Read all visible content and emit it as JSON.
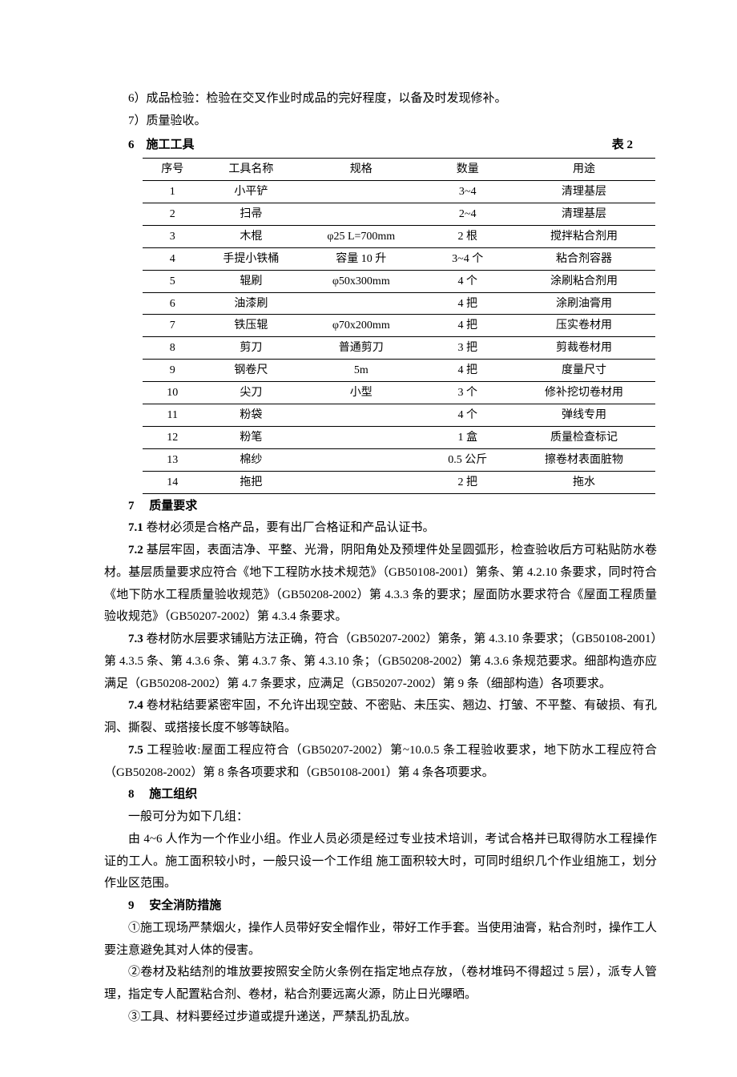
{
  "pre_items": [
    "6）成品检验：检验在交叉作业时成品的完好程度，以备及时发现修补。",
    "7）质量验收。"
  ],
  "section6": {
    "num": "6",
    "title": "施工工具",
    "table_label": "表 2",
    "columns": [
      "序号",
      "工具名称",
      "规格",
      "数量",
      "用途"
    ],
    "rows": [
      [
        "1",
        "小平铲",
        "",
        "3~4",
        "清理基层"
      ],
      [
        "2",
        "扫帚",
        "",
        "2~4",
        "清理基层"
      ],
      [
        "3",
        "木棍",
        "φ25  L=700mm",
        "2 根",
        "搅拌粘合剂用"
      ],
      [
        "4",
        "手提小铁桶",
        "容量 10 升",
        "3~4 个",
        "粘合剂容器"
      ],
      [
        "5",
        "辊刷",
        "φ50x300mm",
        "4 个",
        "涂刷粘合剂用"
      ],
      [
        "6",
        "油漆刷",
        "",
        "4 把",
        "涂刷油膏用"
      ],
      [
        "7",
        "铁压辊",
        "φ70x200mm",
        "4 把",
        "压实卷材用"
      ],
      [
        "8",
        "剪刀",
        "普通剪刀",
        "3 把",
        "剪裁卷材用"
      ],
      [
        "9",
        "钢卷尺",
        "5m",
        "4 把",
        "度量尺寸"
      ],
      [
        "10",
        "尖刀",
        "小型",
        "3 个",
        "修补挖切卷材用"
      ],
      [
        "11",
        "粉袋",
        "",
        "4 个",
        "弹线专用"
      ],
      [
        "12",
        "粉笔",
        "",
        "1 盒",
        "质量检查标记"
      ],
      [
        "13",
        "棉纱",
        "",
        "0.5 公斤",
        "擦卷材表面脏物"
      ],
      [
        "14",
        "拖把",
        "",
        "2 把",
        "拖水"
      ]
    ]
  },
  "section7": {
    "num": "7",
    "title": "质量要求",
    "items": [
      {
        "num": "7.1",
        "text": "卷材必须是合格产品，要有出厂合格证和产品认证书。"
      },
      {
        "num": "7.2",
        "text": "基层牢固，表面洁净、平整、光滑，阴阳角处及预埋件处呈圆弧形，检查验收后方可粘贴防水卷材。基层质量要求应符合《地下工程防水技术规范》（GB50108-2001）第条、第 4.2.10 条要求，同时符合《地下防水工程质量验收规范》（GB50208-2002）第 4.3.3 条的要求；屋面防水要求符合《屋面工程质量验收规范》（GB50207-2002）第 4.3.4 条要求。"
      },
      {
        "num": "7.3",
        "text": "卷材防水层要求铺贴方法正确，符合（GB50207-2002）第条，第 4.3.10 条要求；（GB50108-2001）第 4.3.5 条、第 4.3.6 条、第 4.3.7 条、第 4.3.10 条；（GB50208-2002）第 4.3.6 条规范要求。细部构造亦应满足（GB50208-2002）第 4.7 条要求，应满足（GB50207-2002）第 9 条（细部构造）各项要求。"
      },
      {
        "num": "7.4",
        "text": "卷材粘结要紧密牢固，不允许出现空鼓、不密贴、未压实、翘边、打皱、不平整、有破损、有孔洞、撕裂、或搭接长度不够等缺陷。"
      },
      {
        "num": "7.5",
        "text": "工程验收:屋面工程应符合（GB50207-2002）第~10.0.5 条工程验收要求，地下防水工程应符合（GB50208-2002）第 8 条各项要求和（GB50108-2001）第 4 条各项要求。"
      }
    ]
  },
  "section8": {
    "num": "8",
    "title": "施工组织",
    "paras": [
      "一般可分为如下几组：",
      "由 4~6 人作为一个作业小组。作业人员必须是经过专业技术培训，考试合格并已取得防水工程操作证的工人。施工面积较小时，一般只设一个工作组 施工面积较大时，可同时组织几个作业组施工，划分作业区范围。"
    ]
  },
  "section9": {
    "num": "9",
    "title": "安全消防措施",
    "paras": [
      "①施工现场严禁烟火，操作人员带好安全帽作业，带好工作手套。当使用油膏，粘合剂时，操作工人要注意避免其对人体的侵害。",
      "②卷材及粘结剂的堆放要按照安全防火条例在指定地点存放，（卷材堆码不得超过 5 层），派专人管理，指定专人配置粘合剂、卷材，粘合剂要远离火源，防止日光曝晒。",
      "③工具、材料要经过步道或提升递送，严禁乱扔乱放。"
    ]
  }
}
